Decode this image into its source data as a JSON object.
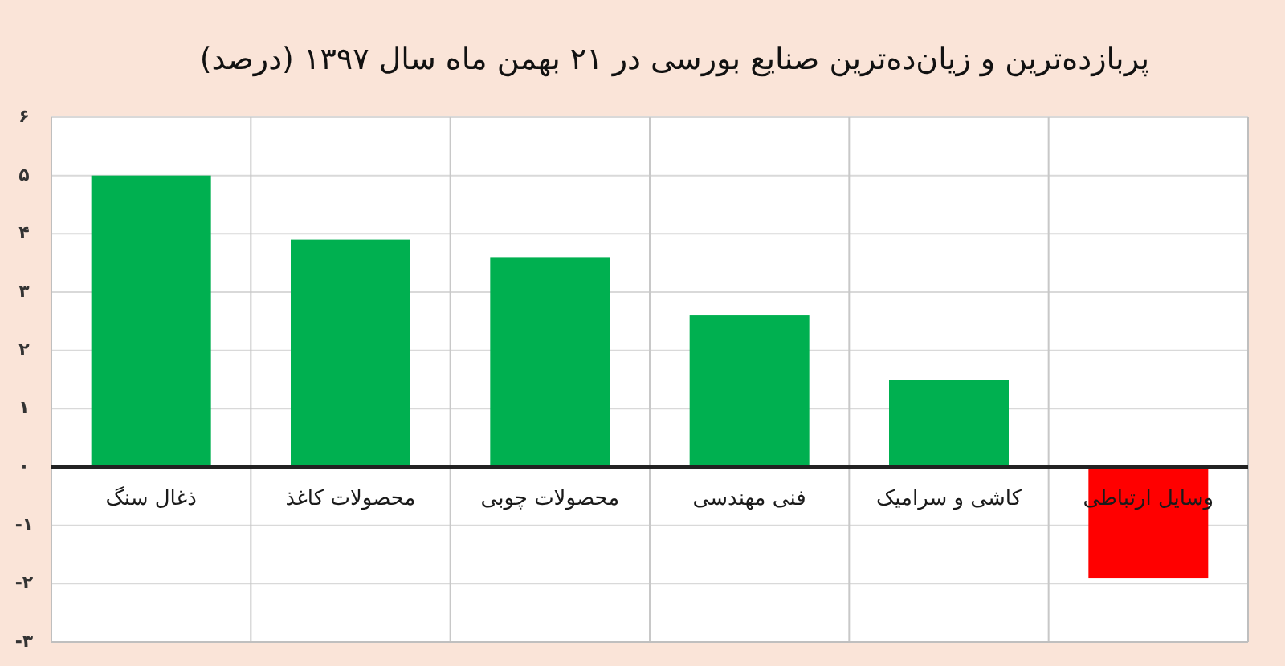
{
  "chart_data": {
    "type": "bar",
    "title": "پربازده‌ترین و زیان‌ده‌ترین صنایع بورسی در ۲۱ بهمن ماه سال ۱۳۹۷ (درصد)",
    "categories": [
      "ذغال سنگ",
      "محصولات کاغذ",
      "محصولات چوبی",
      "فنی مهندسی",
      "کاشی و سرامیک",
      "وسایل ارتباطی"
    ],
    "values": [
      5.0,
      3.9,
      3.6,
      2.6,
      1.5,
      -1.9
    ],
    "colors": [
      "#00b050",
      "#00b050",
      "#00b050",
      "#00b050",
      "#00b050",
      "#ff0000"
    ],
    "ylim": [
      -3,
      6
    ],
    "yticks": [
      {
        "value": -3,
        "label": "-۳"
      },
      {
        "value": -2,
        "label": "-۲"
      },
      {
        "value": -1,
        "label": "-۱"
      },
      {
        "value": 0,
        "label": "۰"
      },
      {
        "value": 1,
        "label": "۱"
      },
      {
        "value": 2,
        "label": "۲"
      },
      {
        "value": 3,
        "label": "۳"
      },
      {
        "value": 4,
        "label": "۴"
      },
      {
        "value": 5,
        "label": "۵"
      },
      {
        "value": 6,
        "label": "۶"
      }
    ],
    "grid": true
  }
}
